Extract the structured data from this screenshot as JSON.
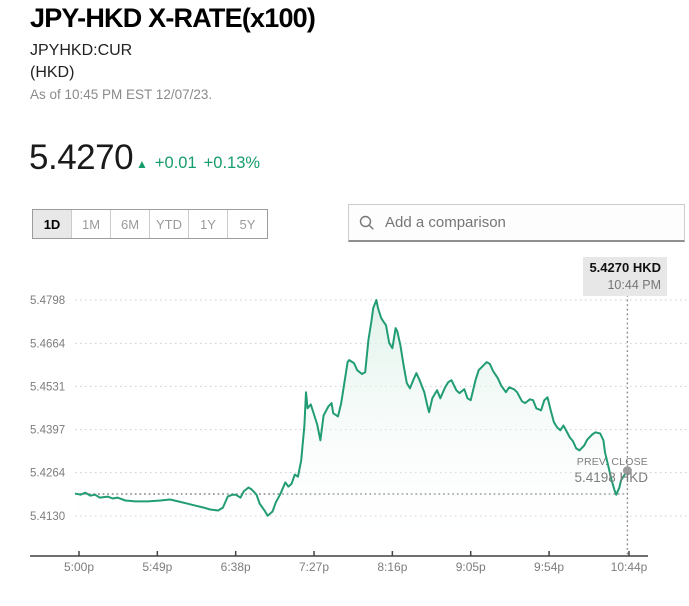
{
  "header": {
    "title": "JPY-HKD X-RATE(x100)",
    "ticker": "JPYHKD:CUR",
    "currency_label": "(HKD)",
    "as_of": "As of 10:45 PM EST 12/07/23."
  },
  "quote": {
    "price": "5.4270",
    "up_arrow": "▲",
    "change": "+0.01",
    "change_pct": "+0.13%",
    "change_color": "#179d6b"
  },
  "range_tabs": [
    {
      "label": "1D",
      "active": true
    },
    {
      "label": "1M",
      "active": false
    },
    {
      "label": "6M",
      "active": false
    },
    {
      "label": "YTD",
      "active": false
    },
    {
      "label": "1Y",
      "active": false
    },
    {
      "label": "5Y",
      "active": false
    }
  ],
  "comparison": {
    "placeholder": "Add a comparison",
    "icon": "search-icon"
  },
  "chart_data": {
    "type": "line",
    "title": "",
    "xlabel": "",
    "ylabel": "",
    "line_color": "#219c74",
    "grid": "dotted-horizontal",
    "x_axis": {
      "labels": [
        "5:00p",
        "5:49p",
        "6:38p",
        "7:27p",
        "8:16p",
        "9:05p",
        "9:54p",
        "10:44p"
      ],
      "minutes": [
        0,
        49,
        98,
        147,
        196,
        245,
        294,
        344
      ]
    },
    "y_axis": {
      "ticks": [
        "5.4798",
        "5.4664",
        "5.4531",
        "5.4397",
        "5.4264",
        "5.4130"
      ],
      "ylim": [
        5.413,
        5.4798
      ]
    },
    "prev_close": {
      "label": "PREV. CLOSE",
      "value": 5.4198,
      "value_label": "5.4198 HKD"
    },
    "last": {
      "value": 5.427,
      "value_label": "5.4270 HKD",
      "time_label": "10:44 PM",
      "minute": 343
    },
    "points": [
      [
        -2,
        5.4199
      ],
      [
        1,
        5.4196
      ],
      [
        4,
        5.4202
      ],
      [
        7,
        5.4193
      ],
      [
        10,
        5.4196
      ],
      [
        13,
        5.4187
      ],
      [
        18,
        5.419
      ],
      [
        21,
        5.4184
      ],
      [
        24,
        5.4187
      ],
      [
        29,
        5.4178
      ],
      [
        35,
        5.4175
      ],
      [
        43,
        5.4175
      ],
      [
        51,
        5.4178
      ],
      [
        57,
        5.4181
      ],
      [
        62,
        5.4175
      ],
      [
        68,
        5.4168
      ],
      [
        73,
        5.4162
      ],
      [
        78,
        5.4156
      ],
      [
        82,
        5.415
      ],
      [
        87,
        5.4147
      ],
      [
        90,
        5.4156
      ],
      [
        93,
        5.419
      ],
      [
        96,
        5.4196
      ],
      [
        98,
        5.4196
      ],
      [
        101,
        5.4187
      ],
      [
        103,
        5.4206
      ],
      [
        106,
        5.4218
      ],
      [
        108,
        5.4212
      ],
      [
        111,
        5.4196
      ],
      [
        113,
        5.4168
      ],
      [
        116,
        5.4147
      ],
      [
        118,
        5.4131
      ],
      [
        121,
        5.4144
      ],
      [
        123,
        5.4171
      ],
      [
        126,
        5.4199
      ],
      [
        129,
        5.4234
      ],
      [
        131,
        5.4221
      ],
      [
        133,
        5.423
      ],
      [
        135,
        5.4258
      ],
      [
        137,
        5.4252
      ],
      [
        139,
        5.4302
      ],
      [
        141,
        5.441
      ],
      [
        142,
        5.4513
      ],
      [
        143,
        5.4463
      ],
      [
        145,
        5.4475
      ],
      [
        147,
        5.4444
      ],
      [
        149,
        5.4413
      ],
      [
        151,
        5.4364
      ],
      [
        153,
        5.4441
      ],
      [
        156,
        5.4469
      ],
      [
        158,
        5.4479
      ],
      [
        159,
        5.4448
      ],
      [
        162,
        5.4438
      ],
      [
        164,
        5.4479
      ],
      [
        168,
        5.4606
      ],
      [
        169,
        5.4612
      ],
      [
        172,
        5.4603
      ],
      [
        174,
        5.4581
      ],
      [
        177,
        5.4569
      ],
      [
        179,
        5.4575
      ],
      [
        181,
        5.4674
      ],
      [
        183,
        5.4736
      ],
      [
        184,
        5.4773
      ],
      [
        186,
        5.4798
      ],
      [
        187,
        5.4773
      ],
      [
        189,
        5.4742
      ],
      [
        191,
        5.4727
      ],
      [
        192,
        5.472
      ],
      [
        194,
        5.4665
      ],
      [
        196,
        5.4649
      ],
      [
        198,
        5.4711
      ],
      [
        199,
        5.4702
      ],
      [
        201,
        5.4658
      ],
      [
        203,
        5.4596
      ],
      [
        205,
        5.4541
      ],
      [
        207,
        5.4525
      ],
      [
        209,
        5.455
      ],
      [
        211,
        5.4572
      ],
      [
        213,
        5.455
      ],
      [
        216,
        5.4513
      ],
      [
        218,
        5.4469
      ],
      [
        219,
        5.4451
      ],
      [
        221,
        5.4494
      ],
      [
        224,
        5.4519
      ],
      [
        226,
        5.4494
      ],
      [
        229,
        5.4528
      ],
      [
        231,
        5.4544
      ],
      [
        233,
        5.455
      ],
      [
        236,
        5.4519
      ],
      [
        238,
        5.451
      ],
      [
        241,
        5.4522
      ],
      [
        243,
        5.4494
      ],
      [
        245,
        5.4488
      ],
      [
        248,
        5.455
      ],
      [
        250,
        5.4581
      ],
      [
        253,
        5.4596
      ],
      [
        255,
        5.4606
      ],
      [
        257,
        5.46
      ],
      [
        259,
        5.4578
      ],
      [
        262,
        5.4556
      ],
      [
        264,
        5.4534
      ],
      [
        267,
        5.4513
      ],
      [
        269,
        5.4528
      ],
      [
        272,
        5.4522
      ],
      [
        274,
        5.4513
      ],
      [
        277,
        5.4485
      ],
      [
        279,
        5.4479
      ],
      [
        282,
        5.4491
      ],
      [
        284,
        5.4488
      ],
      [
        286,
        5.4463
      ],
      [
        289,
        5.4457
      ],
      [
        291,
        5.4488
      ],
      [
        293,
        5.4497
      ],
      [
        295,
        5.4457
      ],
      [
        297,
        5.442
      ],
      [
        299,
        5.4404
      ],
      [
        301,
        5.4395
      ],
      [
        303,
        5.441
      ],
      [
        304,
        5.4401
      ],
      [
        307,
        5.4373
      ],
      [
        309,
        5.4361
      ],
      [
        311,
        5.4339
      ],
      [
        313,
        5.4333
      ],
      [
        316,
        5.4348
      ],
      [
        318,
        5.4367
      ],
      [
        321,
        5.4382
      ],
      [
        323,
        5.4389
      ],
      [
        326,
        5.4385
      ],
      [
        328,
        5.4364
      ],
      [
        329,
        5.4327
      ],
      [
        331,
        5.4286
      ],
      [
        333,
        5.4243
      ],
      [
        335,
        5.4209
      ],
      [
        336,
        5.4196
      ],
      [
        338,
        5.4218
      ],
      [
        339,
        5.424
      ],
      [
        341,
        5.4256
      ],
      [
        343,
        5.427
      ]
    ]
  }
}
